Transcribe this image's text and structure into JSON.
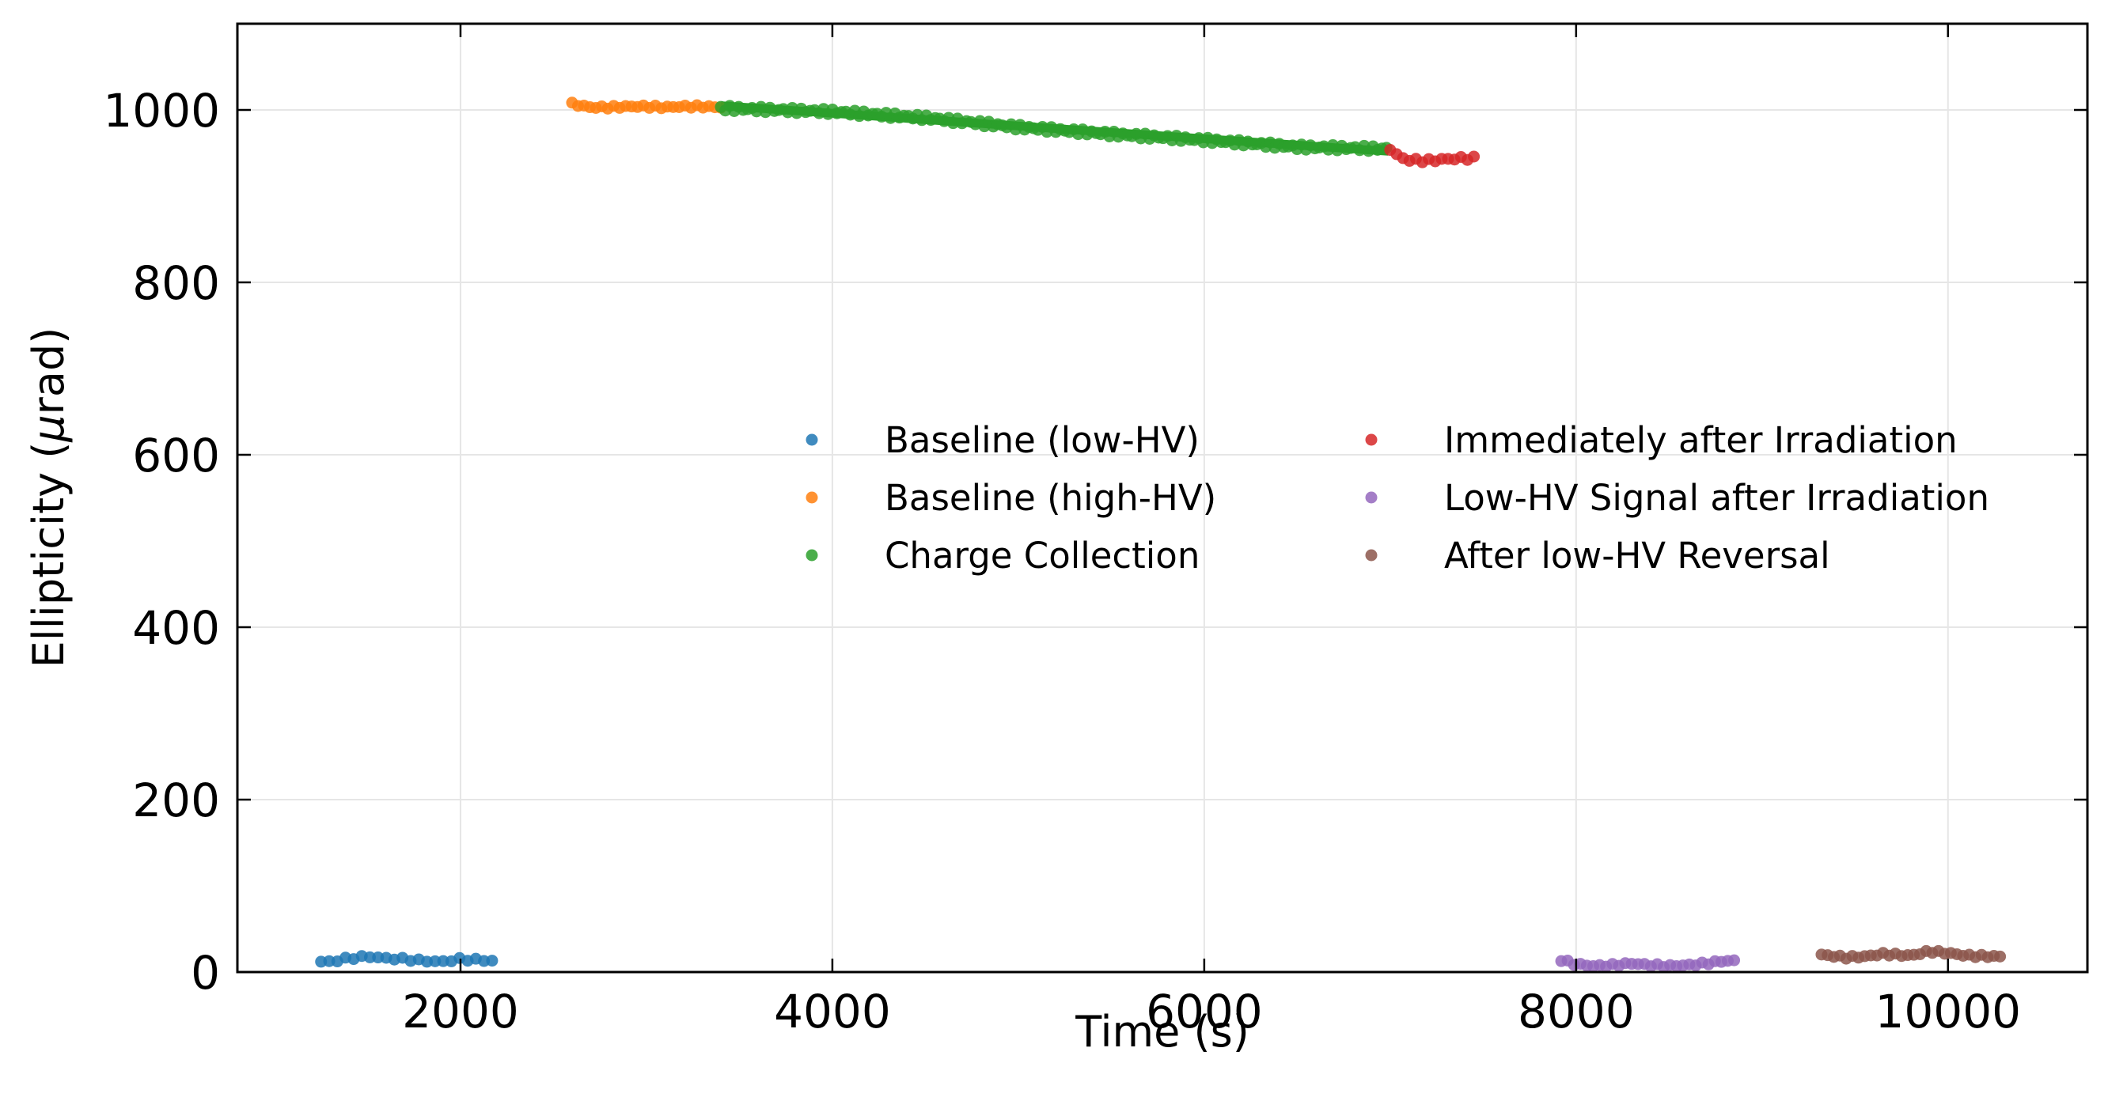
{
  "chart_data": {
    "type": "scatter",
    "title": "",
    "xlabel": "Time (s)",
    "ylabel_parts": [
      "Ellipticity (",
      "μ",
      "rad)"
    ],
    "xlim": [
      800,
      10750
    ],
    "ylim": [
      0,
      1100
    ],
    "xticks": [
      2000,
      4000,
      6000,
      8000,
      10000
    ],
    "yticks": [
      0,
      200,
      400,
      600,
      800,
      1000
    ],
    "grid": true,
    "legend_position": "center-right",
    "series": [
      {
        "name": "Baseline (low-HV)",
        "color": "#1f77b4",
        "x_range": [
          1250,
          2170
        ],
        "profile": [
          [
            1250,
            12
          ],
          [
            1300,
            12
          ],
          [
            1400,
            16
          ],
          [
            1500,
            18
          ],
          [
            1600,
            16
          ],
          [
            1700,
            15
          ],
          [
            1800,
            13
          ],
          [
            1900,
            12
          ],
          [
            2000,
            15
          ],
          [
            2100,
            14
          ],
          [
            2170,
            13
          ]
        ],
        "count": 22,
        "noise": 1.5
      },
      {
        "name": "Baseline (high-HV)",
        "color": "#ff7f0e",
        "x_range": [
          2600,
          3400
        ],
        "profile": [
          [
            2600,
            1007
          ],
          [
            2700,
            1003
          ],
          [
            2800,
            1003
          ],
          [
            2900,
            1004
          ],
          [
            3000,
            1004
          ],
          [
            3100,
            1003
          ],
          [
            3200,
            1004
          ],
          [
            3300,
            1004
          ],
          [
            3400,
            1003
          ]
        ],
        "count": 26,
        "noise": 1.5
      },
      {
        "name": "Charge Collection",
        "color": "#2ca02c",
        "x_range": [
          3400,
          6980
        ],
        "profile": [
          [
            3400,
            1002
          ],
          [
            4000,
            998
          ],
          [
            4500,
            991
          ],
          [
            5000,
            980
          ],
          [
            5500,
            972
          ],
          [
            6000,
            965
          ],
          [
            6500,
            957
          ],
          [
            6980,
            955
          ]
        ],
        "count": 150,
        "noise": 3,
        "fit_line": [
          [
            3400,
            1005
          ],
          [
            6990,
            952
          ]
        ]
      },
      {
        "name": "Immediately after Irradiation",
        "color": "#d62728",
        "x_range": [
          7000,
          7450
        ],
        "profile": [
          [
            7000,
            955
          ],
          [
            7050,
            945
          ],
          [
            7100,
            942
          ],
          [
            7200,
            941
          ],
          [
            7300,
            943
          ],
          [
            7400,
            944
          ],
          [
            7450,
            944
          ]
        ],
        "count": 14,
        "noise": 2
      },
      {
        "name": "Low-HV Signal after Irradiation",
        "color": "#9467bd",
        "x_range": [
          7920,
          8850
        ],
        "profile": [
          [
            7920,
            14
          ],
          [
            8000,
            9
          ],
          [
            8100,
            7
          ],
          [
            8200,
            8
          ],
          [
            8300,
            10
          ],
          [
            8400,
            8
          ],
          [
            8500,
            7
          ],
          [
            8600,
            8
          ],
          [
            8700,
            10
          ],
          [
            8800,
            13
          ],
          [
            8850,
            13
          ]
        ],
        "count": 28,
        "noise": 1.5
      },
      {
        "name": "After low-HV Reversal",
        "color": "#8c564b",
        "x_range": [
          9320,
          10280
        ],
        "profile": [
          [
            9320,
            20
          ],
          [
            9450,
            17
          ],
          [
            9550,
            18
          ],
          [
            9650,
            21
          ],
          [
            9800,
            19
          ],
          [
            9900,
            24
          ],
          [
            10000,
            22
          ],
          [
            10100,
            19
          ],
          [
            10280,
            18
          ]
        ],
        "count": 30,
        "noise": 1.5
      }
    ]
  }
}
